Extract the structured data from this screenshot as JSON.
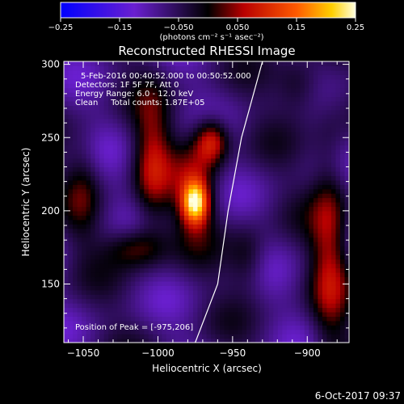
{
  "chart_data": {
    "type": "heatmap",
    "title": "Reconstructed RHESSI Image",
    "annotations": [
      "5-Feb-2016 00:40:52.000 to 00:50:52.000",
      "Detectors: 1F 5F 7F, Att 0",
      "Energy Range: 6.0 - 12.0 keV",
      "Clean     Total counts: 1.87E+05",
      "Position of Peak = [-975,206]"
    ],
    "xlabel": "Heliocentric X (arcsec)",
    "ylabel": "Heliocentric Y (arcsec)",
    "xlim": [
      -1063,
      -872
    ],
    "ylim": [
      110,
      302
    ],
    "xticks": [
      -1050,
      -1000,
      -950,
      -900
    ],
    "xtick_labels": [
      "−1050",
      "−1000",
      "−950",
      "−900"
    ],
    "yticks": [
      150,
      200,
      250,
      300
    ],
    "ytick_labels": [
      "150",
      "200",
      "250",
      "300"
    ],
    "colorbar": {
      "range": [
        -0.25,
        0.25
      ],
      "ticks": [
        -0.25,
        -0.15,
        -0.05,
        0.05,
        0.15,
        0.25
      ],
      "tick_labels": [
        "−0.25",
        "−0.15",
        "−0.050",
        "0.050",
        "0.15",
        "0.25"
      ],
      "unit_label": "(photons cm⁻² s⁻¹ asec⁻²)"
    },
    "peak": {
      "x": -975,
      "y": 206,
      "value": 0.25
    },
    "sources": [
      {
        "x": -975,
        "y": 206,
        "sx": 6,
        "sy": 10,
        "amp": 0.25
      },
      {
        "x": -975,
        "y": 215,
        "sx": 11,
        "sy": 26,
        "amp": 0.09
      },
      {
        "x": -964,
        "y": 248,
        "sx": 8,
        "sy": 11,
        "amp": 0.16
      },
      {
        "x": -1004,
        "y": 233,
        "sx": 9,
        "sy": 32,
        "amp": 0.12
      },
      {
        "x": -1015,
        "y": 175,
        "sx": 14,
        "sy": 10,
        "amp": 0.1
      },
      {
        "x": -940,
        "y": 168,
        "sx": 9,
        "sy": 16,
        "amp": 0.07
      },
      {
        "x": -885,
        "y": 175,
        "sx": 9,
        "sy": 55,
        "amp": 0.11
      },
      {
        "x": -905,
        "y": 285,
        "sx": 11,
        "sy": 14,
        "amp": 0.08
      },
      {
        "x": -1050,
        "y": 215,
        "sx": 8,
        "sy": 25,
        "amp": 0.06
      }
    ],
    "limb_points": [
      [
        -975,
        110
      ],
      [
        -960,
        150
      ],
      [
        -953,
        200
      ],
      [
        -944,
        250
      ],
      [
        -930,
        302
      ]
    ],
    "date_stamp": "6-Oct-2017 09:37"
  }
}
